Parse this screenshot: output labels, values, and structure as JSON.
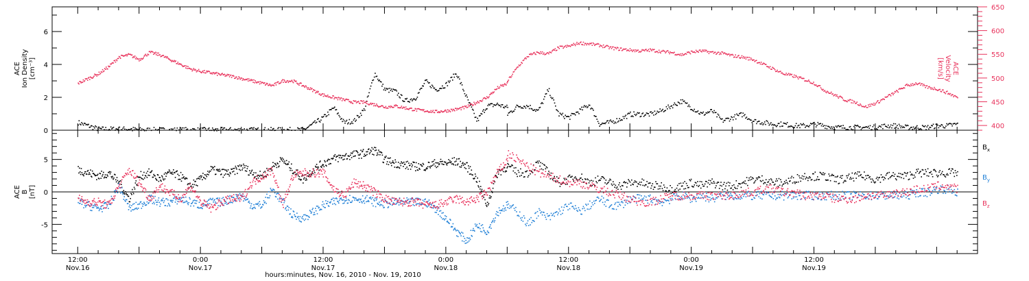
{
  "chart_data": [
    {
      "type": "scatter",
      "panel": "plasma",
      "ylabel_lines": [
        "ACE",
        "Ion Density",
        "[cm⁻³]"
      ],
      "ylim": [
        0,
        7.5
      ],
      "yticks": [
        0,
        2,
        4,
        6
      ],
      "y2label_lines": [
        "ACE",
        "Velocity",
        "[km/s]"
      ],
      "y2lim": [
        390,
        650
      ],
      "y2ticks": [
        400,
        450,
        500,
        550,
        600,
        650
      ],
      "series": [
        {
          "color": "#000000",
          "axis": "left",
          "x": [
            0,
            2,
            4,
            6,
            8,
            10,
            12,
            14,
            16,
            18,
            20,
            22,
            24,
            26,
            28,
            30,
            32,
            34,
            36,
            38,
            40,
            42,
            44,
            46,
            48,
            50,
            52,
            54,
            56,
            58,
            60,
            62,
            64,
            66,
            68,
            70,
            72,
            74,
            76,
            78,
            80,
            82,
            84
          ],
          "y": [
            0.5,
            0.3,
            0.1,
            0.1,
            0.1,
            0.1,
            0.05,
            0.05,
            0.05,
            0.05,
            0.05,
            0.05,
            0.05,
            0.05,
            0.05,
            0.05,
            0.05,
            0.05,
            0.05,
            0.05,
            0.05,
            0.05,
            0.05,
            0.4,
            0.8,
            1.4,
            0.5,
            0.6,
            1.3,
            3.5,
            2.5,
            2.4,
            1.8,
            2.0,
            3.0,
            2.5,
            2.8,
            3.5,
            2.0,
            0.6,
            1.5,
            1.6,
            1.4
          ]
        },
        {
          "color": "#000000",
          "axis": "left",
          "x": [
            84,
            86,
            88,
            90,
            92,
            94,
            96,
            98,
            100,
            102,
            104,
            106,
            108,
            110,
            112,
            114,
            116,
            118,
            120,
            122,
            124,
            126,
            128,
            130,
            132,
            134,
            136,
            138,
            140,
            142,
            144,
            146,
            148,
            150,
            152,
            154,
            156,
            158,
            160,
            162,
            164,
            166,
            168,
            170,
            172
          ],
          "y": [
            1.0,
            1.5,
            1.5,
            1.2,
            2.5,
            1.0,
            0.8,
            1.2,
            1.6,
            0.4,
            0.5,
            0.7,
            1.0,
            1.0,
            1.0,
            1.2,
            1.5,
            1.8,
            1.4,
            1.0,
            1.2,
            0.6,
            0.8,
            1.0,
            0.6,
            0.5,
            0.4,
            0.4,
            0.3,
            0.3,
            0.4,
            0.3,
            0.2,
            0.2,
            0.2,
            0.2,
            0.2,
            0.3,
            0.3,
            0.2,
            0.2,
            0.2,
            0.3,
            0.3,
            0.4
          ]
        },
        {
          "color": "#e8305a",
          "axis": "right",
          "x": [
            0,
            2,
            4,
            6,
            8,
            10,
            12,
            14,
            16,
            18,
            20,
            22,
            24,
            26,
            28,
            30,
            32,
            34,
            36,
            38,
            40,
            42,
            44,
            46,
            48,
            50,
            52,
            54,
            56,
            58,
            60,
            62,
            64,
            66,
            68,
            70,
            72,
            74,
            76,
            78,
            80,
            82,
            84
          ],
          "y": [
            490,
            500,
            510,
            525,
            545,
            550,
            540,
            555,
            550,
            540,
            530,
            520,
            515,
            512,
            508,
            505,
            500,
            495,
            490,
            485,
            495,
            495,
            485,
            475,
            465,
            460,
            455,
            450,
            450,
            445,
            440,
            442,
            438,
            434,
            432,
            430,
            432,
            435,
            440,
            450,
            460,
            480,
            490
          ],
          "points": 600
        },
        {
          "color": "#e8305a",
          "axis": "right",
          "x": [
            84,
            86,
            88,
            90,
            92,
            94,
            96,
            98,
            100,
            102,
            104,
            106,
            108,
            110,
            112,
            114,
            116,
            118,
            120,
            122,
            124,
            126,
            128,
            130,
            132,
            134,
            136,
            138,
            140,
            142,
            144,
            146,
            148,
            150,
            152,
            154,
            156,
            158,
            160,
            162,
            164,
            166,
            168,
            170,
            172
          ],
          "y": [
            495,
            525,
            548,
            555,
            552,
            565,
            568,
            575,
            573,
            570,
            565,
            562,
            560,
            558,
            560,
            557,
            555,
            550,
            556,
            558,
            555,
            553,
            548,
            545,
            540,
            530,
            520,
            510,
            505,
            498,
            490,
            475,
            465,
            455,
            450,
            440,
            448,
            460,
            472,
            485,
            490,
            482,
            478,
            470,
            460
          ],
          "points": 560
        }
      ]
    },
    {
      "type": "scatter",
      "panel": "magnetic-field",
      "ylabel_lines": [
        "ACE",
        "B",
        "[nT]"
      ],
      "ylim": [
        -9.5,
        9.5
      ],
      "yticks": [
        -5,
        0,
        5
      ],
      "zero_line": true,
      "series": [
        {
          "name": "Bx",
          "label": "B",
          "sub": "x",
          "color": "#000000",
          "x": [
            0,
            2,
            4,
            6,
            8,
            10,
            12,
            14,
            16,
            18,
            20,
            22,
            24,
            26,
            28,
            30,
            32,
            34,
            36,
            38,
            40,
            42,
            44,
            46,
            48,
            50,
            52,
            54,
            56,
            58,
            60,
            62,
            64,
            66,
            68,
            70,
            72,
            74,
            76,
            78,
            80,
            82,
            84
          ],
          "y": [
            3.5,
            3.0,
            2.5,
            3.0,
            1.5,
            -1.0,
            2.5,
            3.0,
            2.0,
            3.0,
            2.5,
            1.0,
            2.0,
            3.5,
            3.0,
            3.0,
            4.0,
            3.0,
            2.5,
            4.0,
            5.0,
            3.5,
            2.0,
            3.5,
            4.5,
            5.2,
            5.5,
            5.8,
            6.0,
            6.5,
            5.0,
            4.5,
            4.2,
            4.0,
            4.0,
            4.5,
            4.5,
            4.8,
            4.0,
            2.0,
            -2.0,
            3.0,
            4.0
          ],
          "points": 700
        },
        {
          "name": "Bx",
          "label": "B",
          "sub": "x",
          "color": "#000000",
          "x": [
            84,
            86,
            88,
            90,
            92,
            94,
            96,
            98,
            100,
            102,
            104,
            106,
            108,
            110,
            112,
            114,
            116,
            118,
            120,
            122,
            124,
            126,
            128,
            130,
            132,
            134,
            136,
            138,
            140,
            142,
            144,
            146,
            148,
            150,
            152,
            154,
            156,
            158,
            160,
            162,
            164,
            166,
            168,
            170,
            172
          ],
          "y": [
            4.0,
            3.0,
            3.0,
            4.5,
            3.0,
            1.5,
            2.0,
            2.5,
            1.5,
            2.0,
            1.5,
            1.0,
            1.5,
            1.5,
            1.0,
            1.0,
            0.5,
            1.0,
            1.5,
            1.0,
            1.5,
            1.0,
            1.0,
            1.5,
            2.0,
            2.0,
            1.5,
            1.5,
            2.0,
            2.5,
            2.5,
            2.5,
            2.0,
            2.0,
            2.5,
            2.5,
            2.0,
            2.5,
            2.5,
            2.5,
            3.0,
            3.0,
            3.0,
            3.0,
            3.0
          ],
          "points": 560
        },
        {
          "name": "By",
          "label": "B",
          "sub": "y",
          "color": "#1f7fd6",
          "x": [
            0,
            2,
            4,
            6,
            8,
            10,
            12,
            14,
            16,
            18,
            20,
            22,
            24,
            26,
            28,
            30,
            32,
            34,
            36,
            38,
            40,
            42,
            44,
            46,
            48,
            50,
            52,
            54,
            56,
            58,
            60,
            62,
            64,
            66,
            68,
            70,
            72,
            74,
            76,
            78,
            80,
            82,
            84
          ],
          "y": [
            -1.5,
            -2.0,
            -2.5,
            -2.0,
            1.0,
            -2.5,
            -2.0,
            -1.0,
            -1.5,
            -1.5,
            -1.0,
            -1.5,
            -2.0,
            -1.5,
            -1.5,
            -1.0,
            -0.5,
            -2.0,
            -2.0,
            0.5,
            -1.5,
            -3.5,
            -4.0,
            -3.0,
            -2.0,
            -1.5,
            -1.0,
            -1.0,
            -1.0,
            -1.5,
            -1.8,
            -1.5,
            -1.5,
            -1.5,
            -1.5,
            -2.5,
            -4.0,
            -6.0,
            -7.5,
            -5.0,
            -6.0,
            -3.0,
            -2.0
          ],
          "points": 700
        },
        {
          "name": "By",
          "label": "B",
          "sub": "y",
          "color": "#1f7fd6",
          "x": [
            84,
            86,
            88,
            90,
            92,
            94,
            96,
            98,
            100,
            102,
            104,
            106,
            108,
            110,
            112,
            114,
            116,
            118,
            120,
            122,
            124,
            126,
            128,
            130,
            132,
            134,
            136,
            138,
            140,
            142,
            144,
            146,
            148,
            150,
            152,
            154,
            156,
            158,
            160,
            162,
            164,
            166,
            168,
            170,
            172
          ],
          "y": [
            -2.0,
            -3.0,
            -5.0,
            -3.0,
            -4.0,
            -3.0,
            -2.0,
            -3.0,
            -2.0,
            -1.0,
            -2.0,
            -2.0,
            -1.0,
            -1.0,
            -1.0,
            -1.5,
            -1.0,
            -0.5,
            -1.0,
            -0.5,
            -1.0,
            -0.5,
            -0.5,
            -0.5,
            -0.5,
            -0.5,
            -0.5,
            -0.5,
            -0.5,
            -0.5,
            -0.5,
            -0.5,
            -0.5,
            -0.5,
            -0.5,
            -0.5,
            -0.5,
            -0.5,
            -0.5,
            -0.5,
            0.0,
            0.0,
            0.5,
            0.5,
            0.0
          ],
          "points": 560
        },
        {
          "name": "Bz",
          "label": "B",
          "sub": "z",
          "color": "#e8305a",
          "x": [
            0,
            2,
            4,
            6,
            8,
            10,
            12,
            14,
            16,
            18,
            20,
            22,
            24,
            26,
            28,
            30,
            32,
            34,
            36,
            38,
            40,
            42,
            44,
            46,
            48,
            50,
            52,
            54,
            56,
            58,
            60,
            62,
            64,
            66,
            68,
            70,
            72,
            74,
            76,
            78,
            80,
            82,
            84
          ],
          "y": [
            -1.0,
            -1.5,
            -1.5,
            -2.0,
            1.0,
            3.5,
            1.5,
            -1.0,
            1.0,
            0.0,
            -1.0,
            1.0,
            -1.5,
            -2.5,
            -1.5,
            -1.0,
            -1.0,
            1.5,
            2.5,
            3.5,
            -2.0,
            2.5,
            3.0,
            3.0,
            3.0,
            0.5,
            -0.5,
            1.5,
            1.0,
            0.0,
            -1.0,
            -1.5,
            -1.5,
            -1.5,
            -2.0,
            -2.0,
            -1.5,
            -1.0,
            -1.5,
            -1.0,
            0.0,
            3.0,
            5.0
          ],
          "points": 700
        },
        {
          "name": "Bz",
          "label": "B",
          "sub": "z",
          "color": "#e8305a",
          "x": [
            84,
            86,
            88,
            90,
            92,
            94,
            96,
            98,
            100,
            102,
            104,
            106,
            108,
            110,
            112,
            114,
            116,
            118,
            120,
            122,
            124,
            126,
            128,
            130,
            132,
            134,
            136,
            138,
            140,
            142,
            144,
            146,
            148,
            150,
            152,
            154,
            156,
            158,
            160,
            162,
            164,
            166,
            168,
            170,
            172
          ],
          "y": [
            6.0,
            5.0,
            4.0,
            3.0,
            2.5,
            2.0,
            1.5,
            1.5,
            1.0,
            0.5,
            0.0,
            -0.5,
            -1.0,
            -1.5,
            -1.5,
            -1.0,
            -0.5,
            -0.5,
            -0.5,
            -0.5,
            -0.5,
            -0.5,
            -0.5,
            0.0,
            0.0,
            0.5,
            0.5,
            0.0,
            0.0,
            -0.5,
            -0.5,
            -0.5,
            -1.0,
            -1.0,
            -1.0,
            -0.5,
            -0.5,
            -0.5,
            0.0,
            0.0,
            0.5,
            0.5,
            1.0,
            1.0,
            0.5
          ],
          "points": 560
        }
      ]
    }
  ],
  "time_axis": {
    "range_hours": [
      -5,
      176
    ],
    "xlabel": "hours:minutes, Nov. 16, 2010 - Nov. 19, 2010",
    "major": [
      {
        "h": 0,
        "time": "12:00",
        "date": "Nov.16"
      },
      {
        "h": 24,
        "time": "0:00",
        "date": "Nov.17"
      },
      {
        "h": 48,
        "time": "12:00",
        "date": "Nov.17"
      },
      {
        "h": 72,
        "time": "0:00",
        "date": "Nov.18"
      },
      {
        "h": 96,
        "time": "12:00",
        "date": "Nov.18"
      },
      {
        "h": 120,
        "time": "0:00",
        "date": "Nov.19"
      },
      {
        "h": 144,
        "time": "12:00",
        "date": "Nov.19"
      }
    ],
    "gap_hours": [
      [
        103,
        113
      ]
    ]
  }
}
